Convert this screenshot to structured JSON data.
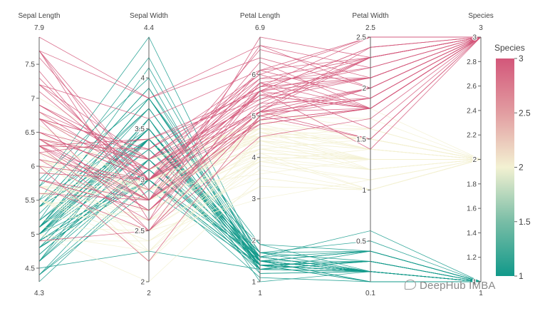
{
  "chart_data": {
    "type": "parallel_coordinates",
    "dimensions": [
      {
        "name": "Sepal Length",
        "range": [
          4.3,
          7.9
        ],
        "min_label": "4.3",
        "max_label": "7.9",
        "ticks": [
          "4.5",
          "5",
          "5.5",
          "6",
          "6.5",
          "7",
          "7.5"
        ]
      },
      {
        "name": "Sepal Width",
        "range": [
          2,
          4.4
        ],
        "min_label": "2",
        "max_label": "4.4",
        "ticks": [
          "2",
          "2.5",
          "3",
          "3.5",
          "4"
        ]
      },
      {
        "name": "Petal Length",
        "range": [
          1,
          6.9
        ],
        "min_label": "1",
        "max_label": "6.9",
        "ticks": [
          "1",
          "2",
          "3",
          "4",
          "5",
          "6"
        ]
      },
      {
        "name": "Petal Width",
        "range": [
          0.1,
          2.5
        ],
        "min_label": "0.1",
        "max_label": "2.5",
        "ticks": [
          "0.5",
          "1",
          "1.5",
          "2",
          "2.5"
        ]
      },
      {
        "name": "Species",
        "range": [
          1,
          3
        ],
        "min_label": "1",
        "max_label": "3",
        "ticks": [
          "1",
          "1.2",
          "1.4",
          "1.6",
          "1.8",
          "2",
          "2.2",
          "2.4",
          "2.6",
          "2.8",
          "3"
        ]
      }
    ],
    "records": [
      [
        5.1,
        3.5,
        1.4,
        0.2,
        1
      ],
      [
        4.9,
        3.0,
        1.4,
        0.2,
        1
      ],
      [
        4.7,
        3.2,
        1.3,
        0.2,
        1
      ],
      [
        4.6,
        3.1,
        1.5,
        0.2,
        1
      ],
      [
        5.0,
        3.6,
        1.4,
        0.2,
        1
      ],
      [
        5.4,
        3.9,
        1.7,
        0.4,
        1
      ],
      [
        4.6,
        3.4,
        1.4,
        0.3,
        1
      ],
      [
        5.0,
        3.4,
        1.5,
        0.2,
        1
      ],
      [
        4.4,
        2.9,
        1.4,
        0.2,
        1
      ],
      [
        4.9,
        3.1,
        1.5,
        0.1,
        1
      ],
      [
        5.4,
        3.7,
        1.5,
        0.2,
        1
      ],
      [
        4.8,
        3.4,
        1.6,
        0.2,
        1
      ],
      [
        4.8,
        3.0,
        1.4,
        0.1,
        1
      ],
      [
        4.3,
        3.0,
        1.1,
        0.1,
        1
      ],
      [
        5.8,
        4.0,
        1.2,
        0.2,
        1
      ],
      [
        5.7,
        4.4,
        1.5,
        0.4,
        1
      ],
      [
        5.4,
        3.9,
        1.3,
        0.4,
        1
      ],
      [
        5.1,
        3.5,
        1.4,
        0.3,
        1
      ],
      [
        5.7,
        3.8,
        1.7,
        0.3,
        1
      ],
      [
        5.1,
        3.8,
        1.5,
        0.3,
        1
      ],
      [
        5.4,
        3.4,
        1.7,
        0.2,
        1
      ],
      [
        5.1,
        3.7,
        1.5,
        0.4,
        1
      ],
      [
        4.6,
        3.6,
        1.0,
        0.2,
        1
      ],
      [
        5.1,
        3.3,
        1.7,
        0.5,
        1
      ],
      [
        4.8,
        3.4,
        1.9,
        0.2,
        1
      ],
      [
        5.0,
        3.0,
        1.6,
        0.2,
        1
      ],
      [
        5.0,
        3.4,
        1.6,
        0.4,
        1
      ],
      [
        5.2,
        3.5,
        1.5,
        0.2,
        1
      ],
      [
        5.2,
        3.4,
        1.4,
        0.2,
        1
      ],
      [
        4.7,
        3.2,
        1.6,
        0.2,
        1
      ],
      [
        4.8,
        3.1,
        1.6,
        0.2,
        1
      ],
      [
        5.4,
        3.4,
        1.5,
        0.4,
        1
      ],
      [
        5.2,
        4.1,
        1.5,
        0.1,
        1
      ],
      [
        5.5,
        4.2,
        1.4,
        0.2,
        1
      ],
      [
        4.9,
        3.1,
        1.5,
        0.2,
        1
      ],
      [
        5.0,
        3.2,
        1.2,
        0.2,
        1
      ],
      [
        5.5,
        3.5,
        1.3,
        0.2,
        1
      ],
      [
        4.9,
        3.6,
        1.4,
        0.1,
        1
      ],
      [
        4.4,
        3.0,
        1.3,
        0.2,
        1
      ],
      [
        5.1,
        3.4,
        1.5,
        0.2,
        1
      ],
      [
        5.0,
        3.5,
        1.3,
        0.3,
        1
      ],
      [
        4.5,
        2.3,
        1.3,
        0.3,
        1
      ],
      [
        4.4,
        3.2,
        1.3,
        0.2,
        1
      ],
      [
        5.0,
        3.5,
        1.6,
        0.6,
        1
      ],
      [
        5.1,
        3.8,
        1.9,
        0.4,
        1
      ],
      [
        4.8,
        3.0,
        1.4,
        0.3,
        1
      ],
      [
        5.1,
        3.8,
        1.6,
        0.2,
        1
      ],
      [
        4.6,
        3.2,
        1.4,
        0.2,
        1
      ],
      [
        5.3,
        3.7,
        1.5,
        0.2,
        1
      ],
      [
        5.0,
        3.3,
        1.4,
        0.2,
        1
      ],
      [
        7.0,
        3.2,
        4.7,
        1.4,
        2
      ],
      [
        6.4,
        3.2,
        4.5,
        1.5,
        2
      ],
      [
        6.9,
        3.1,
        4.9,
        1.5,
        2
      ],
      [
        5.5,
        2.3,
        4.0,
        1.3,
        2
      ],
      [
        6.5,
        2.8,
        4.6,
        1.5,
        2
      ],
      [
        5.7,
        2.8,
        4.5,
        1.3,
        2
      ],
      [
        6.3,
        3.3,
        4.7,
        1.6,
        2
      ],
      [
        4.9,
        2.4,
        3.3,
        1.0,
        2
      ],
      [
        6.6,
        2.9,
        4.6,
        1.3,
        2
      ],
      [
        5.2,
        2.7,
        3.9,
        1.4,
        2
      ],
      [
        5.0,
        2.0,
        3.5,
        1.0,
        2
      ],
      [
        5.9,
        3.0,
        4.2,
        1.5,
        2
      ],
      [
        6.0,
        2.2,
        4.0,
        1.0,
        2
      ],
      [
        6.1,
        2.9,
        4.7,
        1.4,
        2
      ],
      [
        5.6,
        2.9,
        3.6,
        1.3,
        2
      ],
      [
        6.7,
        3.1,
        4.4,
        1.4,
        2
      ],
      [
        5.6,
        3.0,
        4.5,
        1.5,
        2
      ],
      [
        5.8,
        2.7,
        4.1,
        1.0,
        2
      ],
      [
        6.2,
        2.2,
        4.5,
        1.5,
        2
      ],
      [
        5.6,
        2.5,
        3.9,
        1.1,
        2
      ],
      [
        5.9,
        3.2,
        4.8,
        1.8,
        2
      ],
      [
        6.1,
        2.8,
        4.0,
        1.3,
        2
      ],
      [
        6.3,
        2.5,
        4.9,
        1.5,
        2
      ],
      [
        6.1,
        2.8,
        4.7,
        1.2,
        2
      ],
      [
        6.4,
        2.9,
        4.3,
        1.3,
        2
      ],
      [
        6.6,
        3.0,
        4.4,
        1.4,
        2
      ],
      [
        6.8,
        2.8,
        4.8,
        1.4,
        2
      ],
      [
        6.7,
        3.0,
        5.0,
        1.7,
        2
      ],
      [
        6.0,
        2.9,
        4.5,
        1.5,
        2
      ],
      [
        5.7,
        2.6,
        3.5,
        1.0,
        2
      ],
      [
        5.5,
        2.4,
        3.8,
        1.1,
        2
      ],
      [
        5.5,
        2.4,
        3.7,
        1.0,
        2
      ],
      [
        5.8,
        2.7,
        3.9,
        1.2,
        2
      ],
      [
        6.0,
        2.7,
        5.1,
        1.6,
        2
      ],
      [
        5.4,
        3.0,
        4.5,
        1.5,
        2
      ],
      [
        6.0,
        3.4,
        4.5,
        1.6,
        2
      ],
      [
        6.7,
        3.1,
        4.7,
        1.5,
        2
      ],
      [
        6.3,
        2.3,
        4.4,
        1.3,
        2
      ],
      [
        5.6,
        3.0,
        4.1,
        1.3,
        2
      ],
      [
        5.5,
        2.5,
        4.0,
        1.3,
        2
      ],
      [
        5.5,
        2.6,
        4.4,
        1.2,
        2
      ],
      [
        6.1,
        3.0,
        4.6,
        1.4,
        2
      ],
      [
        5.8,
        2.6,
        4.0,
        1.2,
        2
      ],
      [
        5.0,
        2.3,
        3.3,
        1.0,
        2
      ],
      [
        5.6,
        2.7,
        4.2,
        1.3,
        2
      ],
      [
        5.7,
        3.0,
        4.2,
        1.2,
        2
      ],
      [
        5.7,
        2.9,
        4.2,
        1.3,
        2
      ],
      [
        6.2,
        2.9,
        4.3,
        1.3,
        2
      ],
      [
        5.1,
        2.5,
        3.0,
        1.1,
        2
      ],
      [
        5.7,
        2.8,
        4.1,
        1.3,
        2
      ],
      [
        6.3,
        3.3,
        6.0,
        2.5,
        3
      ],
      [
        5.8,
        2.7,
        5.1,
        1.9,
        3
      ],
      [
        7.1,
        3.0,
        5.9,
        2.1,
        3
      ],
      [
        6.3,
        2.9,
        5.6,
        1.8,
        3
      ],
      [
        6.5,
        3.0,
        5.8,
        2.2,
        3
      ],
      [
        7.6,
        3.0,
        6.6,
        2.1,
        3
      ],
      [
        4.9,
        2.5,
        4.5,
        1.7,
        3
      ],
      [
        7.3,
        2.9,
        6.3,
        1.8,
        3
      ],
      [
        6.7,
        2.5,
        5.8,
        1.8,
        3
      ],
      [
        7.2,
        3.6,
        6.1,
        2.5,
        3
      ],
      [
        6.5,
        3.2,
        5.1,
        2.0,
        3
      ],
      [
        6.4,
        2.7,
        5.3,
        1.9,
        3
      ],
      [
        6.8,
        3.0,
        5.5,
        2.1,
        3
      ],
      [
        5.7,
        2.5,
        5.0,
        2.0,
        3
      ],
      [
        5.8,
        2.8,
        5.1,
        2.4,
        3
      ],
      [
        6.4,
        3.2,
        5.3,
        2.3,
        3
      ],
      [
        6.5,
        3.0,
        5.5,
        1.8,
        3
      ],
      [
        7.7,
        3.8,
        6.7,
        2.2,
        3
      ],
      [
        7.7,
        2.6,
        6.9,
        2.3,
        3
      ],
      [
        6.0,
        2.2,
        5.0,
        1.5,
        3
      ],
      [
        6.9,
        3.2,
        5.7,
        2.3,
        3
      ],
      [
        5.6,
        2.8,
        4.9,
        2.0,
        3
      ],
      [
        7.7,
        2.8,
        6.7,
        2.0,
        3
      ],
      [
        6.3,
        2.7,
        4.9,
        1.8,
        3
      ],
      [
        6.7,
        3.3,
        5.7,
        2.1,
        3
      ],
      [
        7.2,
        3.2,
        6.0,
        1.8,
        3
      ],
      [
        6.2,
        2.8,
        4.8,
        1.8,
        3
      ],
      [
        6.1,
        3.0,
        4.9,
        1.8,
        3
      ],
      [
        6.4,
        2.8,
        5.6,
        2.1,
        3
      ],
      [
        7.2,
        3.0,
        5.8,
        1.6,
        3
      ],
      [
        7.4,
        2.8,
        6.1,
        1.9,
        3
      ],
      [
        7.9,
        3.8,
        6.4,
        2.0,
        3
      ],
      [
        6.4,
        2.8,
        5.6,
        2.2,
        3
      ],
      [
        6.3,
        2.8,
        5.1,
        1.5,
        3
      ],
      [
        6.1,
        2.6,
        5.6,
        1.4,
        3
      ],
      [
        7.7,
        3.0,
        6.1,
        2.3,
        3
      ],
      [
        6.3,
        3.4,
        5.6,
        2.4,
        3
      ],
      [
        6.4,
        3.1,
        5.5,
        1.8,
        3
      ],
      [
        6.0,
        3.0,
        4.8,
        1.8,
        3
      ],
      [
        6.9,
        3.1,
        5.4,
        2.1,
        3
      ],
      [
        6.7,
        3.1,
        5.6,
        2.4,
        3
      ],
      [
        6.9,
        3.1,
        5.1,
        2.3,
        3
      ],
      [
        5.8,
        2.7,
        5.1,
        1.9,
        3
      ],
      [
        6.8,
        3.2,
        5.9,
        2.3,
        3
      ],
      [
        6.7,
        3.3,
        5.7,
        2.5,
        3
      ],
      [
        6.7,
        3.0,
        5.2,
        2.3,
        3
      ],
      [
        6.3,
        2.5,
        5.0,
        1.9,
        3
      ],
      [
        6.5,
        3.0,
        5.2,
        2.0,
        3
      ],
      [
        6.2,
        3.4,
        5.4,
        2.3,
        3
      ],
      [
        5.9,
        3.0,
        5.1,
        1.8,
        3
      ]
    ],
    "colorbar": {
      "title": "Species",
      "range": [
        1,
        3
      ],
      "ticks": [
        "1",
        "1.5",
        "2",
        "2.5",
        "3"
      ],
      "colors": [
        "#11998a",
        "#79bda6",
        "#f3f1d2",
        "#e29da1",
        "#d3577a"
      ]
    }
  },
  "watermark": "DeepHub IMBA"
}
